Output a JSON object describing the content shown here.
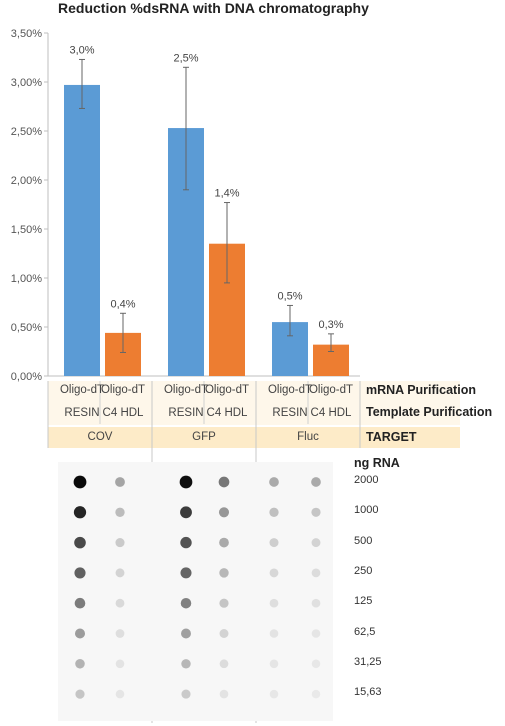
{
  "chart_data": {
    "type": "bar",
    "title": "Reduction %dsRNA with DNA chromatography",
    "ylim": [
      0,
      3.5
    ],
    "yticks": [
      "0,00%",
      "0,50%",
      "1,00%",
      "1,50%",
      "2,00%",
      "2,50%",
      "3,00%",
      "3,50%"
    ],
    "bars": [
      {
        "mrna": "Oligo-dT",
        "template": "RESIN",
        "target": "COV",
        "value": 2.97,
        "err_low": 2.73,
        "err_high": 3.23,
        "label": "3,0%",
        "color": "#5b9bd5"
      },
      {
        "mrna": "Oligo-dT",
        "template": "C4 HDL",
        "target": "COV",
        "value": 0.44,
        "err_low": 0.24,
        "err_high": 0.64,
        "label": "0,4%",
        "color": "#ed7d31"
      },
      {
        "mrna": "Oligo-dT",
        "template": "RESIN",
        "target": "GFP",
        "value": 2.53,
        "err_low": 1.9,
        "err_high": 3.15,
        "label": "2,5%",
        "color": "#5b9bd5"
      },
      {
        "mrna": "Oligo-dT",
        "template": "C4 HDL",
        "target": "GFP",
        "value": 1.35,
        "err_low": 0.95,
        "err_high": 1.77,
        "label": "1,4%",
        "color": "#ed7d31"
      },
      {
        "mrna": "Oligo-dT",
        "template": "RESIN",
        "target": "Fluc",
        "value": 0.55,
        "err_low": 0.41,
        "err_high": 0.72,
        "label": "0,5%",
        "color": "#5b9bd5"
      },
      {
        "mrna": "Oligo-dT",
        "template": "C4 HDL",
        "target": "Fluc",
        "value": 0.32,
        "err_low": 0.25,
        "err_high": 0.43,
        "label": "0,3%",
        "color": "#ed7d31"
      }
    ],
    "targets": [
      "COV",
      "GFP",
      "Fluc"
    ],
    "row_labels": {
      "mrna": "mRNA Purification",
      "template": "Template Purification",
      "target": "TARGET"
    }
  },
  "blot": {
    "label": "ng RNA",
    "amounts": [
      "2000",
      "1000",
      "500",
      "250",
      "125",
      "62,5",
      "31,25",
      "15,63"
    ],
    "intensity": [
      [
        1.0,
        0.88,
        0.72,
        0.62,
        0.5,
        0.36,
        0.26,
        0.18
      ],
      [
        0.32,
        0.22,
        0.16,
        0.12,
        0.09,
        0.07,
        0.05,
        0.04
      ],
      [
        0.98,
        0.78,
        0.68,
        0.6,
        0.48,
        0.34,
        0.24,
        0.16
      ],
      [
        0.52,
        0.38,
        0.3,
        0.24,
        0.18,
        0.12,
        0.08,
        0.05
      ],
      [
        0.3,
        0.2,
        0.14,
        0.1,
        0.07,
        0.05,
        0.04,
        0.03
      ],
      [
        0.3,
        0.18,
        0.12,
        0.08,
        0.06,
        0.04,
        0.03,
        0.02
      ]
    ]
  }
}
